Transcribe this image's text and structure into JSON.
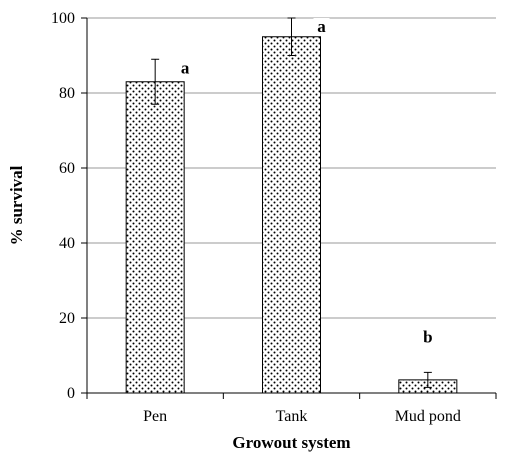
{
  "chart_data": {
    "type": "bar",
    "categories": [
      "Pen",
      "Tank",
      "Mud pond"
    ],
    "values": [
      83,
      95,
      3.5
    ],
    "error": [
      6,
      5,
      2
    ],
    "significance": [
      "a",
      "a",
      "b"
    ],
    "xlabel": "Growout system",
    "ylabel": "% survival",
    "ylim": [
      0,
      100
    ],
    "yticks": [
      0,
      20,
      40,
      60,
      80,
      100
    ],
    "grid": true,
    "bar_fill": "dotted",
    "colors": {
      "bar_fill": "#ffffff",
      "bar_dots": "#000000",
      "grid": "#9a9a9a",
      "axis": "#000000"
    }
  }
}
